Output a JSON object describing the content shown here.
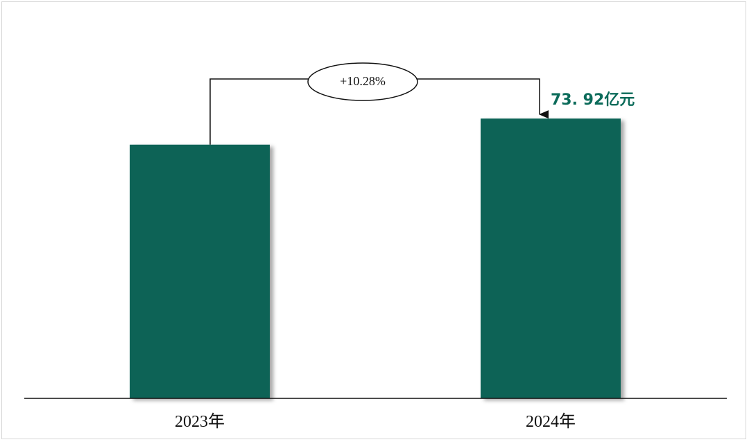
{
  "chart_data": {
    "type": "bar",
    "categories": [
      "2023年",
      "2024年"
    ],
    "values": [
      67.03,
      73.92
    ],
    "ylim": [
      0,
      82
    ],
    "value_label": "73. 92亿元",
    "growth_annotation": "+10.28%",
    "grid": false,
    "bar_color": "#076456",
    "value_label_color": "#0b6b5a"
  }
}
